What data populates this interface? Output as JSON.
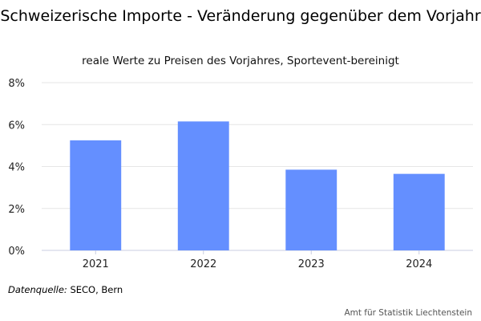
{
  "chart_data": {
    "type": "bar",
    "title": "Schweizerische Importe - Veränderung gegenüber dem Vorjahr",
    "subtitle": "reale Werte zu Preisen des Vorjahres, Sportevent-bereinigt",
    "categories": [
      "2021",
      "2022",
      "2023",
      "2024"
    ],
    "values": [
      5.25,
      6.15,
      3.85,
      3.65
    ],
    "ylim": [
      0,
      8
    ],
    "yticks": [
      "0%",
      "2%",
      "4%",
      "6%",
      "8%"
    ],
    "ytick_values": [
      0,
      2,
      4,
      6,
      8
    ],
    "grid": true,
    "bar_color": "#648fff"
  },
  "source": {
    "label": "Datenquelle:",
    "text": "SECO, Bern"
  },
  "credits": "Amt für Statistik Liechtenstein"
}
